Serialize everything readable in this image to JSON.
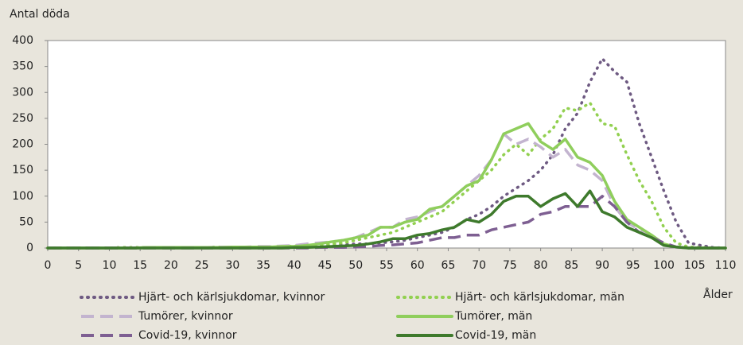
{
  "chart_data": {
    "type": "line",
    "y_label": "Antal döda",
    "x_label": "Ålder",
    "x": [
      0,
      2,
      4,
      6,
      8,
      10,
      12,
      14,
      16,
      18,
      20,
      22,
      24,
      26,
      28,
      30,
      32,
      34,
      36,
      38,
      40,
      42,
      44,
      46,
      48,
      50,
      52,
      54,
      56,
      58,
      60,
      62,
      64,
      66,
      68,
      70,
      72,
      74,
      76,
      78,
      80,
      82,
      84,
      86,
      88,
      90,
      92,
      94,
      96,
      98,
      100,
      102,
      104,
      106,
      108,
      110
    ],
    "xlim": [
      0,
      110
    ],
    "xticks": [
      0,
      5,
      10,
      15,
      20,
      25,
      30,
      35,
      40,
      45,
      50,
      55,
      60,
      65,
      70,
      75,
      80,
      85,
      90,
      95,
      100,
      105,
      110
    ],
    "ylim": [
      0,
      400
    ],
    "yticks": [
      0,
      50,
      100,
      150,
      200,
      250,
      300,
      350,
      400
    ],
    "grid": false,
    "series": [
      {
        "name": "Hjärt- och kärlsjukdomar, kvinnor",
        "color": "#6e5a82",
        "style": "dotted",
        "values": [
          0,
          0,
          0,
          0,
          0,
          0,
          1,
          1,
          1,
          1,
          1,
          1,
          1,
          1,
          2,
          2,
          2,
          2,
          2,
          3,
          3,
          3,
          4,
          5,
          6,
          8,
          8,
          10,
          12,
          15,
          20,
          25,
          30,
          40,
          55,
          65,
          80,
          100,
          115,
          130,
          150,
          180,
          230,
          260,
          320,
          365,
          340,
          320,
          240,
          175,
          110,
          50,
          10,
          5,
          1,
          0
        ]
      },
      {
        "name": "Hjärt- och kärlsjukdomar, män",
        "color": "#92d050",
        "style": "dotted",
        "values": [
          0,
          0,
          0,
          0,
          0,
          0,
          1,
          1,
          1,
          1,
          1,
          1,
          1,
          1,
          2,
          2,
          2,
          2,
          2,
          3,
          4,
          5,
          6,
          8,
          10,
          15,
          20,
          25,
          30,
          40,
          50,
          60,
          70,
          90,
          110,
          130,
          150,
          180,
          200,
          180,
          210,
          230,
          270,
          265,
          280,
          240,
          235,
          180,
          130,
          90,
          40,
          10,
          2,
          1,
          0,
          0
        ]
      },
      {
        "name": "Tumörer, kvinnor",
        "color": "#c3b4cf",
        "style": "dashed",
        "values": [
          0,
          0,
          0,
          0,
          0,
          0,
          0,
          0,
          1,
          1,
          1,
          1,
          1,
          1,
          2,
          2,
          2,
          3,
          3,
          4,
          5,
          8,
          10,
          12,
          15,
          20,
          30,
          40,
          40,
          55,
          60,
          70,
          80,
          100,
          120,
          140,
          170,
          220,
          200,
          210,
          195,
          175,
          190,
          160,
          150,
          130,
          80,
          50,
          35,
          20,
          5,
          1,
          0,
          0,
          0,
          0
        ]
      },
      {
        "name": "Tumörer, män",
        "color": "#8fce5c",
        "style": "solid",
        "values": [
          0,
          0,
          0,
          0,
          0,
          0,
          0,
          0,
          1,
          1,
          1,
          1,
          1,
          1,
          1,
          2,
          2,
          2,
          2,
          3,
          3,
          5,
          8,
          12,
          15,
          20,
          25,
          40,
          40,
          50,
          55,
          75,
          80,
          100,
          120,
          130,
          170,
          220,
          230,
          240,
          205,
          190,
          210,
          175,
          165,
          140,
          90,
          55,
          40,
          25,
          8,
          2,
          0,
          0,
          0,
          0
        ]
      },
      {
        "name": "Covid-19, kvinnor",
        "color": "#7e5f92",
        "style": "dashed",
        "values": [
          0,
          0,
          0,
          0,
          0,
          0,
          0,
          0,
          0,
          0,
          0,
          0,
          0,
          0,
          0,
          0,
          0,
          0,
          0,
          0,
          0,
          0,
          1,
          1,
          1,
          2,
          3,
          5,
          6,
          8,
          10,
          15,
          20,
          20,
          25,
          25,
          35,
          40,
          45,
          50,
          65,
          70,
          80,
          80,
          80,
          100,
          80,
          50,
          30,
          20,
          10,
          2,
          0,
          0,
          0,
          0
        ]
      },
      {
        "name": "Covid-19, män",
        "color": "#3e7a2c",
        "style": "solid",
        "values": [
          0,
          0,
          0,
          0,
          0,
          0,
          0,
          0,
          0,
          0,
          0,
          0,
          0,
          0,
          0,
          0,
          0,
          0,
          0,
          0,
          1,
          1,
          2,
          3,
          4,
          5,
          8,
          12,
          18,
          18,
          25,
          28,
          35,
          40,
          55,
          50,
          65,
          90,
          100,
          100,
          80,
          95,
          105,
          80,
          110,
          70,
          60,
          40,
          30,
          20,
          5,
          2,
          0,
          0,
          0,
          0
        ]
      }
    ]
  }
}
